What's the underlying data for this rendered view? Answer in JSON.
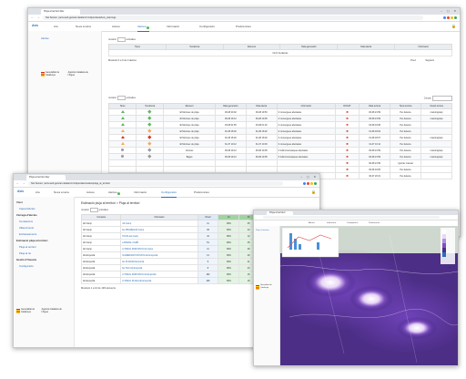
{
  "window1": {
    "tab_title": "Pluja al territori Aler",
    "url": "Not Secure | acw-web.gencat.cat/aler/crm/dpoc/taulaAvis_warnings",
    "nav": [
      "Avís",
      "Ara",
      "Nova a Hora",
      "Avisos",
      "Alertes",
      "Informació",
      "Configuració",
      "Preferències"
    ],
    "alerts_badge": "6",
    "sidebar_link": "Alertes",
    "gencat_left": "Generalitat de Catalunya",
    "gencat_right": "Agència Catalana de l'Aigua",
    "top_table": {
      "show_label": "mostrar",
      "show_value": "10",
      "entries_label": "entrades",
      "headers": [
        "Tipus",
        "Tendència",
        "Element",
        "Data generació",
        "Data alerta",
        "Informació"
      ],
      "empty_row": "No hi ha alertes",
      "footer": "Mostrant 0 a 0 de 0 alertes",
      "prev": "Previ",
      "next": "Següent"
    },
    "main_table": {
      "show_label": "mostrar",
      "show_value": "10",
      "entries_label": "entrades",
      "search_label": "Cercar:",
      "headers": [
        "Tipus",
        "Tendència",
        "Element",
        "Data generació",
        "Data alerta",
        "Informació",
        "DOCAT",
        "Data lectura",
        "Tipus lectura",
        "Usuari lectura"
      ],
      "rows": [
        {
          "type": "tri-green",
          "trend": "dia-green",
          "element": "El Montsec de pluja",
          "gen": "06-08 20:02",
          "alert": "06-08 19:53",
          "info": "0 consergues afectades",
          "docat": "x",
          "read": "06-08 21:59",
          "read_type": "Per defecte",
          "user": "manoingrasp"
        },
        {
          "type": "tri-green",
          "trend": "dia-green",
          "element": "El Montsec de pluja",
          "gen": "06-08 19:12",
          "alert": "06-08 19:05",
          "info": "0 consergues afectades",
          "docat": "x",
          "read": "06-08 21:59",
          "read_type": "Per defecte",
          "user": "manoingrasp"
        },
        {
          "type": "tri-green",
          "trend": "dia-green",
          "element": "El Montsec de pluja",
          "gen": "03-08 01:55",
          "alert": "03-08 01:40",
          "info": "0 consergues afectades",
          "docat": "x",
          "read": "03-08 19:08",
          "read_type": "Per defecte",
          "user": ""
        },
        {
          "type": "tri-orange",
          "trend": "dia-orange",
          "element": "El Montsec de pluja",
          "gen": "01-08 18:02",
          "alert": "01-08 18:02",
          "info": "0 consergues afectades",
          "docat": "x",
          "read": "01-08 18:02",
          "read_type": "Per defecte",
          "user": ""
        },
        {
          "type": "tri-red",
          "trend": "dia-red",
          "element": "El Montsec de pluja",
          "gen": "01-08 18:02",
          "alert": "01-08 18:02",
          "info": "0 consergues afectades",
          "docat": "x",
          "read": "01-08 18:07",
          "read_type": "Per defecte",
          "user": "manoingrasp"
        },
        {
          "type": "tri-orange",
          "trend": "dia-orange",
          "element": "El Montsec de pluja",
          "gen": "31-07 10:12",
          "alert": "31-07 10:03",
          "info": "0 consergues afectades",
          "docat": "x",
          "read": "31-07 10:12",
          "read_type": "Per defecte",
          "user": ""
        },
        {
          "type": "circ-grey",
          "trend": "dia-grey",
          "element": "Gironès",
          "gen": "06-08 19:12",
          "alert": "06-08 19:05",
          "info": "0 Indicronomasques afectades",
          "docat": "x",
          "read": "06-08 21:59",
          "read_type": "Per defecte",
          "user": "manoingrasp"
        },
        {
          "type": "circ-grey",
          "trend": "dia-grey",
          "element": "Bages",
          "gen": "06-08 19:12",
          "alert": "06-08 19:05",
          "info": "0 Indicronomasques afectades",
          "docat": "x",
          "read": "06-08 21:59",
          "read_type": "Per defecte",
          "user": "manoingrasp"
        }
      ],
      "extra_rows": [
        {
          "read": "06-08 21:59",
          "read_type": "Ignorar manual"
        },
        {
          "read": "06-08 19:05",
          "read_type": "Per defecte"
        },
        {
          "read": "30-07 20:31",
          "read_type": "Per defecte"
        }
      ],
      "last_header_date": "Data lectura"
    }
  },
  "window2": {
    "tab_title": "Pluja al territori Aler",
    "url": "Not Secure | acw-web.gencat.cat/aler/crm/dpoc/aler/estaciopluja_al_territori",
    "nav": [
      "Avís",
      "Ara",
      "Nova a Hora",
      "Avisos",
      "Alertes",
      "Informació",
      "Configuració",
      "Preferències"
    ],
    "alerts_badge": "6",
    "sidebar": [
      {
        "label": "Visor",
        "kind": "head"
      },
      {
        "label": "Capes/Alertes",
        "kind": "sub"
      },
      {
        "label": "Càrrega d'alertes",
        "kind": "head"
      },
      {
        "label": "Inundacions",
        "kind": "sub"
      },
      {
        "label": "Allaus/ments",
        "kind": "sub"
      },
      {
        "label": "Embassaments",
        "kind": "sub"
      },
      {
        "label": "Estimació pluja al territori",
        "kind": "head"
      },
      {
        "label": "Pluja al territori",
        "kind": "sub"
      },
      {
        "label": "Pluja al riu",
        "kind": "sub"
      },
      {
        "label": "Gestió d'Usuaris",
        "kind": "head"
      },
      {
        "label": "Configuració",
        "kind": "sub"
      }
    ],
    "gencat_left": "Generalitat de Catalunya",
    "gencat_right": "Agència Catalana de l'Aigua",
    "heading": "Estimació pluja al territori > Pluja al territori",
    "show_label": "mostrar",
    "show_value": "10",
    "entries_label": "entrades",
    "headers": [
      "Comarca",
      "Informació",
      "Nivell",
      "1h",
      "3h",
      "6h",
      "12h",
      "24h"
    ],
    "rows": [
      [
        "Alt Camp",
        "Alt Camp",
        "11",
        "99%",
        "25",
        "26",
        "39",
        "47"
      ],
      [
        "Alt Camp",
        "EL PRADES/Alt Camp",
        "38",
        "99%",
        "24",
        "30",
        "36",
        "45"
      ],
      [
        "Alt Camp",
        "POUS del Camp",
        "44",
        "99%",
        "12",
        "20",
        "31",
        "40"
      ],
      [
        "Alt Camp",
        "LATERAL CAMP",
        "51",
        "99%",
        "25",
        "31",
        "38",
        "42"
      ],
      [
        "Alt Camp",
        "LITORAL MUNTANYA Alt Camp",
        "11",
        "99%",
        "28",
        "35",
        "40",
        "44"
      ],
      [
        "Alt Empordà",
        "NUMERIANTUNTANYA Alt Empordà",
        "14",
        "99%",
        "29",
        "33",
        "37",
        "41"
      ],
      [
        "Alt Empordà",
        "EL PLANAM Empordà",
        "5",
        "99%",
        "21",
        "26",
        "31",
        "36"
      ],
      [
        "Alt Empordà",
        "EL TEC Alt Empordà",
        "8",
        "99%",
        "23",
        "27",
        "33",
        "37"
      ],
      [
        "Alt Empordà",
        "LITORAL MUNTANYA Alt Empordà",
        "182",
        "99%",
        "16",
        "24",
        "30",
        "38"
      ],
      [
        "Alt Empordà",
        "LITORAL PLANA Alt Empordà",
        "166",
        "99%",
        "18",
        "26",
        "31",
        "39"
      ]
    ],
    "footer": "Mostrant 1 a 10 de 138 elements",
    "prev": "Previ",
    "next": "Següent"
  },
  "window3": {
    "panel_title": "Pluja al territori",
    "tabs": [
      "Alertes",
      "Informació",
      "Configuració",
      "Preferències"
    ],
    "legend_label": "mm",
    "gencat": "Generalitat de Catalunya"
  },
  "colors": {
    "accent": "#2a6ebb",
    "green": "#5cb85c",
    "orange": "#f0ad4e",
    "red": "#d9342b",
    "grey": "#9a9a9a"
  }
}
